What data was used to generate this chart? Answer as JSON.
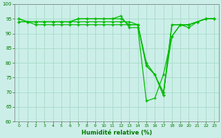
{
  "title": "",
  "xlabel": "Humidité relative (%)",
  "ylabel": "",
  "background_color": "#cceee8",
  "grid_color": "#aaddcc",
  "line_color": "#00bb00",
  "marker_color": "#00bb00",
  "xlim": [
    -0.5,
    23.5
  ],
  "ylim": [
    60,
    100
  ],
  "yticks": [
    60,
    65,
    70,
    75,
    80,
    85,
    90,
    95,
    100
  ],
  "xticks": [
    0,
    1,
    2,
    3,
    4,
    5,
    6,
    7,
    8,
    9,
    10,
    11,
    12,
    13,
    14,
    15,
    16,
    17,
    18,
    19,
    20,
    21,
    22,
    23
  ],
  "series": [
    [
      94,
      94,
      94,
      94,
      94,
      94,
      94,
      95,
      95,
      95,
      95,
      95,
      96,
      92,
      92,
      67,
      68,
      76,
      89,
      93,
      92,
      94,
      95,
      95
    ],
    [
      94,
      94,
      93,
      93,
      93,
      93,
      93,
      93,
      93,
      93,
      93,
      93,
      93,
      93,
      93,
      79,
      76,
      69,
      93,
      93,
      93,
      94,
      95,
      95
    ],
    [
      95,
      94,
      94,
      94,
      94,
      94,
      94,
      94,
      94,
      94,
      94,
      94,
      94,
      94,
      93,
      80,
      76,
      69,
      93,
      93,
      93,
      94,
      95,
      95
    ],
    [
      95,
      94,
      94,
      94,
      94,
      94,
      94,
      95,
      95,
      95,
      95,
      95,
      95,
      93,
      93,
      79,
      76,
      70,
      89,
      93,
      93,
      94,
      95,
      95
    ]
  ]
}
